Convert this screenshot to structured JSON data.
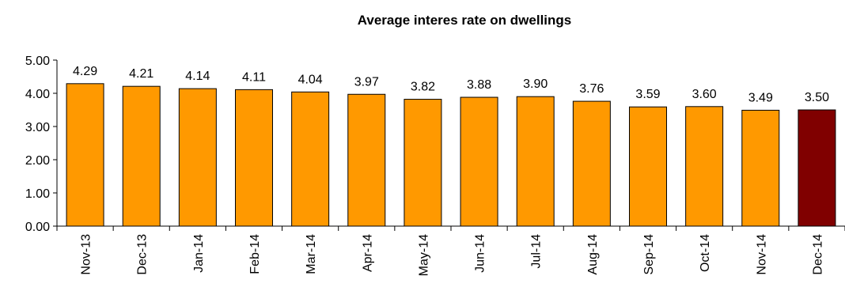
{
  "chart_data": {
    "type": "bar",
    "title": "Average interes rate on dwellings",
    "xlabel": "",
    "ylabel": "",
    "categories": [
      "Nov-13",
      "Dec-13",
      "Jan-14",
      "Feb-14",
      "Mar-14",
      "Apr-14",
      "May-14",
      "Jun-14",
      "Jul-14",
      "Aug-14",
      "Sep-14",
      "Oct-14",
      "Nov-14",
      "Dec-14"
    ],
    "values": [
      4.29,
      4.21,
      4.14,
      4.11,
      4.04,
      3.97,
      3.82,
      3.88,
      3.9,
      3.76,
      3.59,
      3.6,
      3.49,
      3.5
    ],
    "value_labels": [
      "4.29",
      "4.21",
      "4.14",
      "4.11",
      "4.04",
      "3.97",
      "3.82",
      "3.88",
      "3.90",
      "3.76",
      "3.59",
      "3.60",
      "3.49",
      "3.50"
    ],
    "ylim": [
      0,
      5
    ],
    "yticks": [
      0,
      1,
      2,
      3,
      4,
      5
    ],
    "ytick_labels": [
      "0.00",
      "1.00",
      "2.00",
      "3.00",
      "4.00",
      "5.00"
    ],
    "grid": false,
    "legend": "none",
    "colors": {
      "bar": "#FF9900",
      "highlight": "#800000",
      "outline": "#000000"
    },
    "highlight_index": 13
  }
}
